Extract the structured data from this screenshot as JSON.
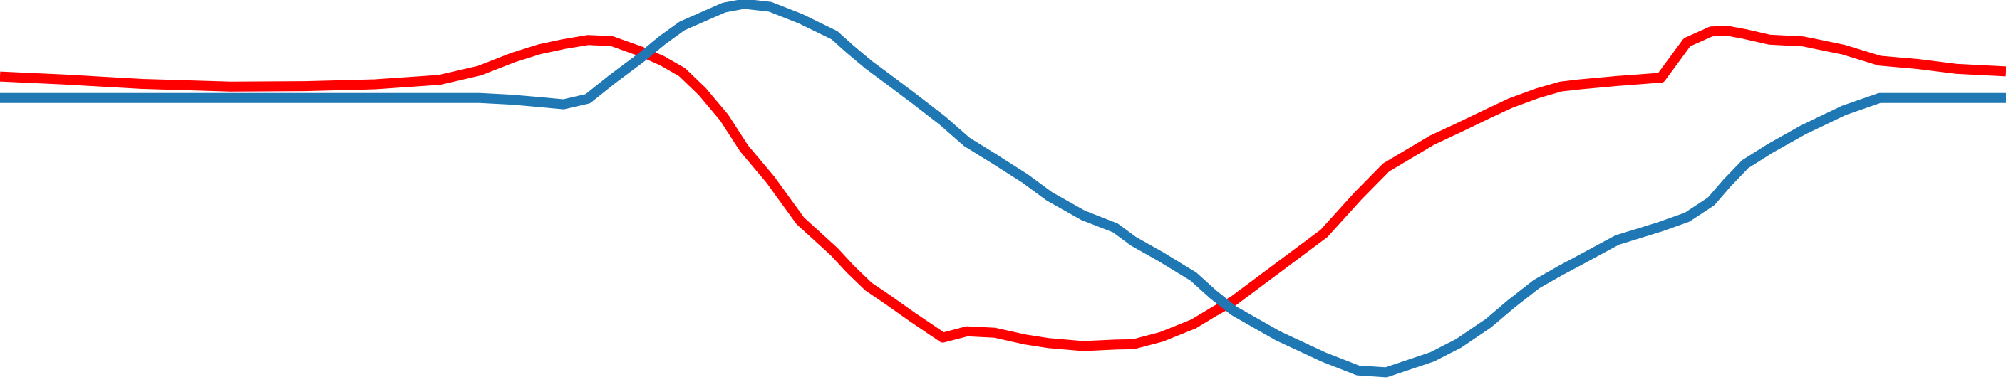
{
  "chart_data": {
    "type": "line",
    "title": "",
    "xlabel": "",
    "ylabel": "",
    "xlim": [
      0,
      100
    ],
    "ylim": [
      0,
      100
    ],
    "grid": false,
    "legend": "none",
    "x": [
      0,
      3.2,
      7.1,
      11.5,
      15.2,
      18.7,
      21.9,
      23.9,
      25.6,
      26.9,
      28.1,
      29.3,
      30.5,
      32.0,
      33.0,
      34.0,
      35.0,
      36.1,
      37.1,
      38.4,
      39.9,
      41.6,
      42.4,
      43.3,
      44.2,
      45.5,
      47.0,
      48.2,
      49.6,
      51.1,
      52.3,
      54.0,
      55.6,
      56.5,
      57.9,
      59.5,
      60.5,
      61.5,
      63.7,
      66.0,
      67.7,
      69.1,
      71.4,
      72.7,
      74.2,
      75.3,
      76.6,
      77.8,
      78.8,
      80.6,
      82.8,
      84.1,
      85.3,
      86.1,
      87.0,
      88.2,
      89.9,
      91.9,
      93.7,
      95.6,
      97.5,
      100
    ],
    "series": [
      {
        "color": "#ff0000",
        "values": [
          80.8,
          80.0,
          78.8,
          78.1,
          78.2,
          78.7,
          79.9,
          82.4,
          86.0,
          88.2,
          89.6,
          90.7,
          90.4,
          87.5,
          85.1,
          82.0,
          76.8,
          69.7,
          61.3,
          52.9,
          41.7,
          33.3,
          28.6,
          23.9,
          20.6,
          15.6,
          10.1,
          11.8,
          11.4,
          9.6,
          8.6,
          7.8,
          8.2,
          8.3,
          10.3,
          13.8,
          17.1,
          20.1,
          29.0,
          38.3,
          48.5,
          56.2,
          63.6,
          66.9,
          70.8,
          73.6,
          76.2,
          78.1,
          78.7,
          79.6,
          80.5,
          90.1,
          93.0,
          93.2,
          92.3,
          90.8,
          90.3,
          88.1,
          85.1,
          84.2,
          82.9,
          82.2
        ]
      },
      {
        "color": "#1f77b4",
        "values": [
          75.0,
          75.0,
          75.0,
          75.0,
          75.0,
          75.0,
          75.0,
          75.0,
          74.5,
          73.9,
          73.3,
          74.8,
          80.0,
          86.1,
          90.6,
          94.5,
          96.9,
          99.5,
          100.5,
          99.7,
          96.5,
          92.0,
          88.1,
          84.0,
          80.4,
          75.1,
          68.8,
          63.1,
          58.4,
          53.2,
          48.4,
          43.2,
          39.8,
          36.2,
          31.9,
          26.6,
          21.7,
          17.4,
          10.6,
          4.8,
          1.2,
          0.7,
          4.9,
          8.5,
          14.0,
          19.1,
          24.6,
          28.3,
          31.2,
          36.5,
          40.2,
          42.7,
          47.0,
          52.0,
          57.1,
          61.2,
          66.4,
          71.6,
          75.0,
          75.0,
          75.0,
          75.0
        ]
      }
    ]
  }
}
